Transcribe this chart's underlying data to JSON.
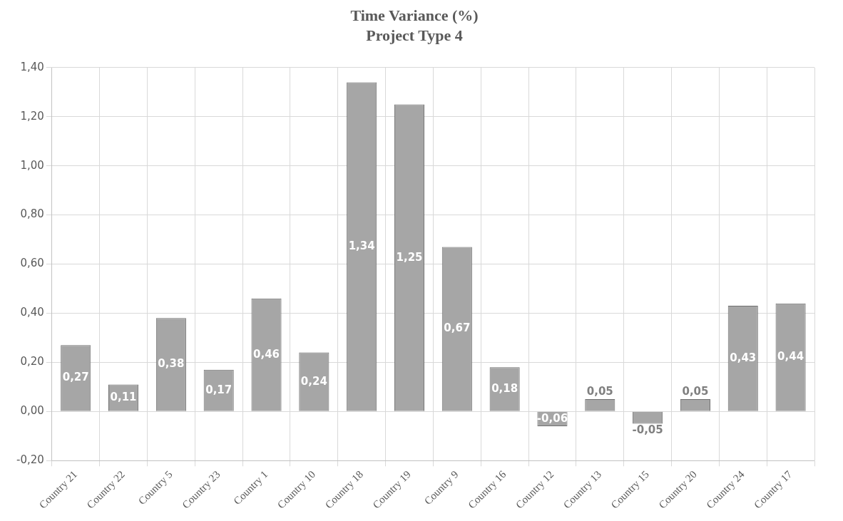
{
  "chart_data": {
    "type": "bar",
    "title": "Time Variance (%)",
    "subtitle": "Project Type 4",
    "categories": [
      "Country 21",
      "Country 22",
      "Country 5",
      "Country 23",
      "Country 1",
      "Country 10",
      "Country 18",
      "Country 19",
      "Country 9",
      "Country 16",
      "Country 12",
      "Country 13",
      "Country 15",
      "Country 20",
      "Country 24",
      "Country 17"
    ],
    "values": [
      0.27,
      0.11,
      0.38,
      0.17,
      0.46,
      0.24,
      1.34,
      1.25,
      0.67,
      0.18,
      -0.06,
      0.05,
      -0.05,
      0.05,
      0.43,
      0.44
    ],
    "value_labels": [
      "0,27",
      "0,11",
      "0,38",
      "0,17",
      "0,46",
      "0,24",
      "1,34",
      "1,25",
      "0,67",
      "0,18",
      "-0,06",
      "0,05",
      "-0,05",
      "0,05",
      "0,43",
      "0,44"
    ],
    "color": "#a6a6a6",
    "ylim": [
      -0.2,
      1.4
    ],
    "yticks": [
      {
        "value": -0.2,
        "label": "-0,20"
      },
      {
        "value": 0,
        "label": "0,00"
      },
      {
        "value": 0.2,
        "label": "0,20"
      },
      {
        "value": 0.4,
        "label": "0,40"
      },
      {
        "value": 0.6,
        "label": "0,60"
      },
      {
        "value": 0.8,
        "label": "0,80"
      },
      {
        "value": 1.0,
        "label": "1,00"
      },
      {
        "value": 1.2,
        "label": "1,20"
      },
      {
        "value": 1.4,
        "label": "1,40"
      }
    ],
    "grid": true
  }
}
